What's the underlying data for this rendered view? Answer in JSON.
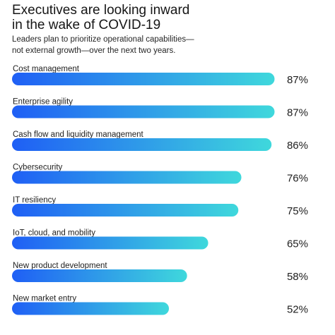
{
  "header": {
    "title_line1": "Executives are looking inward",
    "title_line2": "in the wake of COVID-19",
    "subtitle_line1": "Leaders plan to prioritize operational capabilities—",
    "subtitle_line2": "not external growth—over the next two years."
  },
  "colors": {
    "bar_start": "#1f5ff5",
    "bar_end": "#3fd8dc",
    "text": "#1e1e1e"
  },
  "chart_data": {
    "type": "bar",
    "orientation": "horizontal",
    "title": "Executives are looking inward in the wake of COVID-19",
    "subtitle": "Leaders plan to prioritize operational capabilities—not external growth—over the next two years.",
    "categories": [
      "Cost management",
      "Enterprise agility",
      "Cash flow and liquidity management",
      "Cybersecurity",
      "IT resiliency",
      "IoT, cloud, and mobility",
      "New product development",
      "New market entry"
    ],
    "values": [
      87,
      87,
      86,
      76,
      75,
      65,
      58,
      52
    ],
    "value_labels": [
      "87%",
      "87%",
      "86%",
      "76%",
      "75%",
      "65%",
      "58%",
      "52%"
    ],
    "unit": "%",
    "xlim": [
      0,
      100
    ],
    "grid": false,
    "legend": "none"
  }
}
